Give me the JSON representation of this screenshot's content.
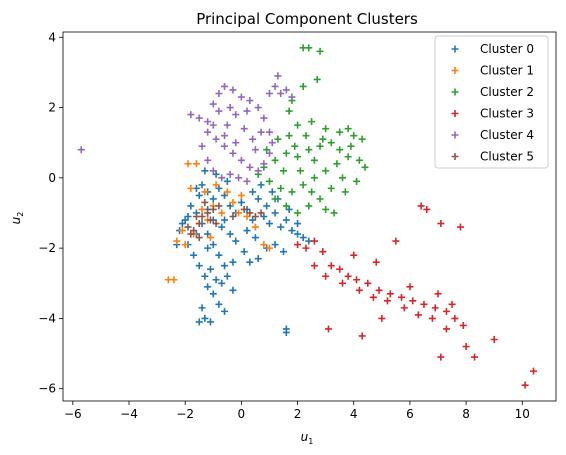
{
  "chart_data": {
    "type": "scatter",
    "title": "Principal Component Clusters",
    "xlabel": "u1",
    "ylabel": "u2",
    "xlim": [
      -6.35,
      11.2
    ],
    "ylim": [
      -6.35,
      4.15
    ],
    "xticks": [
      -6,
      -4,
      -2,
      0,
      2,
      4,
      6,
      8,
      10
    ],
    "yticks": [
      -6,
      -4,
      -2,
      0,
      2,
      4
    ],
    "grid": false,
    "legend_position": "top-right",
    "marker": "plus",
    "series": [
      {
        "name": "Cluster 0",
        "color": "#1f77b4",
        "points": [
          [
            -1.4,
            -0.2
          ],
          [
            -1.2,
            -0.4
          ],
          [
            -1.0,
            -0.6
          ],
          [
            -0.8,
            -0.3
          ],
          [
            -0.6,
            -0.5
          ],
          [
            -0.4,
            -0.8
          ],
          [
            -0.2,
            -1.0
          ],
          [
            0.0,
            -0.7
          ],
          [
            0.2,
            -0.9
          ],
          [
            0.4,
            -1.2
          ],
          [
            0.6,
            -0.6
          ],
          [
            0.8,
            -1.1
          ],
          [
            1.0,
            -1.3
          ],
          [
            1.2,
            -1.0
          ],
          [
            1.4,
            -1.4
          ],
          [
            1.6,
            -1.2
          ],
          [
            1.8,
            -1.5
          ],
          [
            2.0,
            -1.6
          ],
          [
            2.2,
            -1.7
          ],
          [
            2.4,
            -1.8
          ],
          [
            -1.6,
            -1.0
          ],
          [
            -1.4,
            -1.3
          ],
          [
            -1.2,
            -1.6
          ],
          [
            -1.0,
            -1.9
          ],
          [
            -0.8,
            -2.2
          ],
          [
            -0.6,
            -2.5
          ],
          [
            -1.1,
            -2.6
          ],
          [
            -0.9,
            -2.9
          ],
          [
            -1.2,
            -3.1
          ],
          [
            -0.7,
            -3.0
          ],
          [
            -1.0,
            -3.3
          ],
          [
            -0.8,
            -3.6
          ],
          [
            -1.4,
            -3.7
          ],
          [
            -1.3,
            -4.0
          ],
          [
            -1.1,
            -4.1
          ],
          [
            -1.5,
            -4.1
          ],
          [
            1.6,
            -4.4
          ],
          [
            1.6,
            -4.3
          ],
          [
            -0.5,
            -2.8
          ],
          [
            -0.3,
            -2.4
          ],
          [
            -1.8,
            -0.8
          ],
          [
            -2.0,
            -1.2
          ],
          [
            -2.2,
            -1.5
          ],
          [
            -1.9,
            -1.9
          ],
          [
            -1.7,
            -2.2
          ],
          [
            -1.5,
            -2.5
          ],
          [
            -1.3,
            -2.8
          ],
          [
            -0.2,
            -1.8
          ],
          [
            0.1,
            -2.1
          ],
          [
            0.3,
            -2.4
          ],
          [
            0.6,
            -2.3
          ],
          [
            0.9,
            -2.0
          ],
          [
            1.2,
            -1.9
          ],
          [
            1.5,
            -2.1
          ],
          [
            1.3,
            -0.6
          ],
          [
            1.1,
            -0.4
          ],
          [
            0.7,
            -0.2
          ],
          [
            0.4,
            -0.4
          ],
          [
            -0.5,
            -0.1
          ],
          [
            -0.9,
            0.1
          ],
          [
            -1.3,
            0.2
          ],
          [
            -1.5,
            -0.5
          ],
          [
            -0.7,
            -1.4
          ],
          [
            -0.4,
            -1.6
          ],
          [
            0.2,
            -1.5
          ],
          [
            0.5,
            -1.7
          ],
          [
            -1.6,
            -1.6
          ],
          [
            -1.2,
            -2.0
          ],
          [
            -0.3,
            -3.2
          ],
          [
            -0.6,
            -3.8
          ],
          [
            -2.3,
            -1.9
          ],
          [
            -2.1,
            -1.3
          ],
          [
            -1.9,
            -1.1
          ],
          [
            -1.6,
            -0.3
          ],
          [
            -1.2,
            -0.9
          ],
          [
            0.9,
            -0.8
          ],
          [
            1.7,
            -0.9
          ],
          [
            2.0,
            -1.3
          ],
          [
            -1.0,
            -1.2
          ],
          [
            -0.6,
            -1.2
          ]
        ]
      },
      {
        "name": "Cluster 1",
        "color": "#ff7f0e",
        "points": [
          [
            -1.9,
            0.4
          ],
          [
            -1.6,
            0.4
          ],
          [
            -1.8,
            -0.3
          ],
          [
            -1.3,
            -0.4
          ],
          [
            -1.0,
            -0.8
          ],
          [
            -0.7,
            -1.0
          ],
          [
            -0.3,
            -0.7
          ],
          [
            -0.1,
            -1.0
          ],
          [
            0.2,
            -1.1
          ],
          [
            -1.5,
            -1.3
          ],
          [
            -1.7,
            -1.6
          ],
          [
            -2.0,
            -1.9
          ],
          [
            -2.3,
            -1.8
          ],
          [
            -2.6,
            -2.9
          ],
          [
            -2.4,
            -2.9
          ],
          [
            -1.1,
            -1.7
          ],
          [
            0.8,
            -1.9
          ],
          [
            1.0,
            -2.0
          ],
          [
            0.5,
            -1.4
          ],
          [
            -0.9,
            -0.2
          ],
          [
            -0.5,
            -0.4
          ],
          [
            -1.4,
            -0.9
          ],
          [
            -1.2,
            -1.2
          ],
          [
            0.0,
            -0.5
          ],
          [
            -2.1,
            -1.5
          ]
        ]
      },
      {
        "name": "Cluster 2",
        "color": "#2ca02c",
        "points": [
          [
            2.2,
            3.7
          ],
          [
            2.4,
            3.7
          ],
          [
            2.8,
            3.6
          ],
          [
            2.7,
            2.8
          ],
          [
            2.2,
            2.6
          ],
          [
            1.8,
            2.2
          ],
          [
            1.7,
            1.9
          ],
          [
            2.0,
            1.5
          ],
          [
            2.5,
            1.6
          ],
          [
            3.0,
            1.4
          ],
          [
            3.5,
            1.3
          ],
          [
            4.0,
            1.2
          ],
          [
            4.3,
            1.1
          ],
          [
            3.8,
            1.4
          ],
          [
            3.2,
            1.0
          ],
          [
            2.8,
            0.9
          ],
          [
            2.4,
            0.8
          ],
          [
            2.0,
            0.6
          ],
          [
            1.6,
            0.7
          ],
          [
            1.2,
            0.5
          ],
          [
            0.8,
            0.3
          ],
          [
            0.6,
            0.1
          ],
          [
            1.0,
            -0.1
          ],
          [
            1.4,
            -0.3
          ],
          [
            1.8,
            -0.4
          ],
          [
            2.2,
            -0.2
          ],
          [
            2.6,
            0.0
          ],
          [
            3.0,
            0.2
          ],
          [
            3.4,
            0.4
          ],
          [
            3.8,
            0.6
          ],
          [
            4.2,
            0.5
          ],
          [
            4.4,
            0.3
          ],
          [
            3.6,
            0.0
          ],
          [
            3.2,
            -0.3
          ],
          [
            2.8,
            -0.6
          ],
          [
            3.0,
            -0.9
          ],
          [
            3.3,
            -1.0
          ],
          [
            3.7,
            -0.4
          ],
          [
            4.1,
            -0.1
          ],
          [
            2.4,
            -0.8
          ],
          [
            2.0,
            -1.0
          ],
          [
            1.6,
            -0.8
          ],
          [
            1.2,
            -0.6
          ],
          [
            0.9,
            0.8
          ],
          [
            1.3,
            1.1
          ],
          [
            1.7,
            1.2
          ],
          [
            2.3,
            1.2
          ],
          [
            2.9,
            1.1
          ],
          [
            3.5,
            0.8
          ],
          [
            2.1,
            0.2
          ],
          [
            2.6,
            0.5
          ],
          [
            1.5,
            0.2
          ],
          [
            3.9,
            0.9
          ],
          [
            2.5,
            -0.4
          ],
          [
            1.9,
            0.9
          ]
        ]
      },
      {
        "name": "Cluster 3",
        "color": "#d62728",
        "points": [
          [
            2.0,
            -1.9
          ],
          [
            2.3,
            -2.0
          ],
          [
            2.6,
            -1.8
          ],
          [
            2.9,
            -2.1
          ],
          [
            3.2,
            -2.5
          ],
          [
            3.5,
            -2.6
          ],
          [
            3.8,
            -2.8
          ],
          [
            4.1,
            -2.9
          ],
          [
            4.5,
            -3.0
          ],
          [
            4.9,
            -3.2
          ],
          [
            5.3,
            -3.3
          ],
          [
            5.7,
            -3.4
          ],
          [
            6.1,
            -3.5
          ],
          [
            6.5,
            -3.6
          ],
          [
            6.9,
            -3.7
          ],
          [
            7.3,
            -3.8
          ],
          [
            7.6,
            -4.0
          ],
          [
            7.9,
            -4.2
          ],
          [
            7.3,
            -4.3
          ],
          [
            6.8,
            -4.0
          ],
          [
            6.3,
            -3.9
          ],
          [
            5.8,
            -3.7
          ],
          [
            5.2,
            -3.5
          ],
          [
            4.7,
            -3.4
          ],
          [
            4.2,
            -3.2
          ],
          [
            3.6,
            -3.0
          ],
          [
            3.0,
            -2.8
          ],
          [
            2.6,
            -2.5
          ],
          [
            4.8,
            -2.4
          ],
          [
            5.5,
            -1.8
          ],
          [
            4.0,
            -2.2
          ],
          [
            6.4,
            -0.8
          ],
          [
            6.6,
            -0.9
          ],
          [
            7.1,
            -1.3
          ],
          [
            7.8,
            -1.4
          ],
          [
            8.0,
            -4.8
          ],
          [
            8.3,
            -5.1
          ],
          [
            7.1,
            -5.1
          ],
          [
            9.0,
            -4.6
          ],
          [
            10.4,
            -5.5
          ],
          [
            10.1,
            -5.9
          ],
          [
            3.1,
            -4.3
          ],
          [
            4.3,
            -4.5
          ],
          [
            5.0,
            -4.0
          ],
          [
            6.0,
            -3.1
          ],
          [
            7.0,
            -3.3
          ],
          [
            7.5,
            -3.6
          ]
        ]
      },
      {
        "name": "Cluster 4",
        "color": "#9467bd",
        "points": [
          [
            -5.7,
            0.8
          ],
          [
            -1.8,
            1.8
          ],
          [
            -1.5,
            1.7
          ],
          [
            -1.2,
            1.6
          ],
          [
            -1.0,
            2.1
          ],
          [
            -0.8,
            2.4
          ],
          [
            -0.6,
            2.6
          ],
          [
            -0.3,
            2.5
          ],
          [
            0.0,
            2.3
          ],
          [
            0.3,
            2.2
          ],
          [
            0.6,
            2.0
          ],
          [
            0.8,
            1.7
          ],
          [
            1.0,
            1.3
          ],
          [
            1.1,
            1.0
          ],
          [
            1.0,
            0.7
          ],
          [
            0.8,
            0.4
          ],
          [
            0.6,
            0.2
          ],
          [
            0.3,
            0.3
          ],
          [
            0.0,
            0.5
          ],
          [
            -0.3,
            0.7
          ],
          [
            -0.6,
            0.9
          ],
          [
            -0.9,
            1.1
          ],
          [
            -1.2,
            1.3
          ],
          [
            -1.4,
            0.9
          ],
          [
            -1.2,
            0.5
          ],
          [
            -1.0,
            0.2
          ],
          [
            -0.7,
            0.0
          ],
          [
            -0.4,
            0.1
          ],
          [
            -0.1,
            0.0
          ],
          [
            0.2,
            -0.1
          ],
          [
            1.2,
            2.6
          ],
          [
            1.4,
            2.4
          ],
          [
            1.6,
            2.5
          ],
          [
            1.8,
            2.3
          ],
          [
            1.3,
            2.9
          ],
          [
            1.0,
            2.4
          ],
          [
            -0.8,
            1.9
          ],
          [
            -0.5,
            1.5
          ],
          [
            -0.2,
            1.8
          ],
          [
            0.1,
            1.4
          ],
          [
            0.4,
            1.1
          ],
          [
            0.7,
            1.3
          ],
          [
            -1.0,
            1.5
          ],
          [
            -0.4,
            2.0
          ],
          [
            0.2,
            1.9
          ],
          [
            -0.6,
            1.2
          ],
          [
            0.5,
            0.8
          ],
          [
            -0.2,
            1.0
          ]
        ]
      },
      {
        "name": "Cluster 5",
        "color": "#8c564b",
        "points": [
          [
            -1.9,
            -1.4
          ],
          [
            -1.7,
            -1.5
          ],
          [
            -1.5,
            -1.3
          ],
          [
            -1.4,
            -1.1
          ],
          [
            -1.2,
            -1.0
          ],
          [
            -1.0,
            -0.9
          ],
          [
            -0.8,
            -0.8
          ],
          [
            -1.3,
            -0.7
          ],
          [
            -1.6,
            -1.1
          ],
          [
            -1.1,
            -1.2
          ],
          [
            -0.9,
            -1.3
          ],
          [
            0.3,
            -1.0
          ],
          [
            0.5,
            -1.1
          ],
          [
            0.7,
            -1.0
          ],
          [
            0.1,
            -0.9
          ],
          [
            -0.3,
            -1.1
          ],
          [
            -1.8,
            -1.6
          ],
          [
            -1.5,
            -1.7
          ]
        ]
      }
    ]
  }
}
